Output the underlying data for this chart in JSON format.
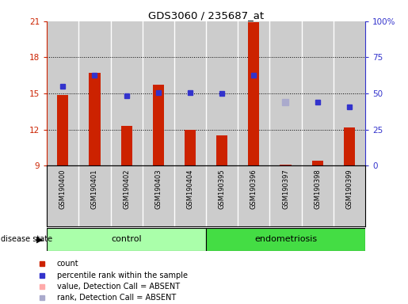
{
  "title": "GDS3060 / 235687_at",
  "samples": [
    "GSM190400",
    "GSM190401",
    "GSM190402",
    "GSM190403",
    "GSM190404",
    "GSM190395",
    "GSM190396",
    "GSM190397",
    "GSM190398",
    "GSM190399"
  ],
  "groups": [
    "control",
    "control",
    "control",
    "control",
    "control",
    "endometriosis",
    "endometriosis",
    "endometriosis",
    "endometriosis",
    "endometriosis"
  ],
  "bar_values": [
    14.9,
    16.7,
    12.3,
    15.7,
    12.0,
    11.5,
    20.9,
    9.1,
    9.4,
    12.2
  ],
  "bar_bottom": 9.0,
  "blue_dot_values": [
    15.6,
    16.5,
    14.8,
    15.1,
    15.1,
    15.0,
    16.5,
    14.3,
    14.3,
    13.9
  ],
  "blue_dot_present": [
    true,
    true,
    true,
    true,
    true,
    true,
    true,
    false,
    true,
    true
  ],
  "absent_rank_sample_idx": 7,
  "absent_rank_value": 14.3,
  "ylim_min": 9,
  "ylim_max": 21,
  "yticks_left": [
    9,
    12,
    15,
    18,
    21
  ],
  "yticks_right_pct": [
    0,
    25,
    50,
    75,
    100
  ],
  "bar_color": "#cc2200",
  "blue_dot_color": "#3333cc",
  "absent_rank_color": "#aaaacc",
  "absent_value_color": "#ffaaaa",
  "control_color": "#aaffaa",
  "endometriosis_color": "#44dd44",
  "bg_color": "#cccccc",
  "col_sep_color": "#ffffff",
  "grid_color": "#000000",
  "legend_items": [
    {
      "color": "#cc2200",
      "label": "count"
    },
    {
      "color": "#3333cc",
      "label": "percentile rank within the sample"
    },
    {
      "color": "#ffaaaa",
      "label": "value, Detection Call = ABSENT"
    },
    {
      "color": "#aaaacc",
      "label": "rank, Detection Call = ABSENT"
    }
  ]
}
